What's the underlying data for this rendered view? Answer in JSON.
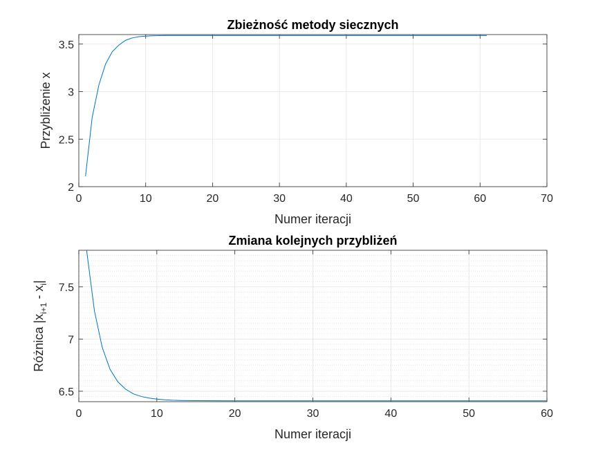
{
  "chart_data": [
    {
      "type": "line",
      "title": "Zbieżność metody siecznych",
      "xlabel": "Numer iteracji",
      "ylabel": "Przybliżenie x",
      "xlim": [
        0,
        70
      ],
      "ylim": [
        2,
        3.6
      ],
      "xticks": [
        0,
        10,
        20,
        30,
        40,
        50,
        60,
        70
      ],
      "yticks": [
        2,
        2.5,
        3,
        3.5
      ],
      "grid": "major",
      "color": "#0072BD",
      "x": [
        1,
        2,
        3,
        4,
        5,
        6,
        7,
        8,
        9,
        10,
        11,
        12,
        13,
        14,
        15,
        20,
        30,
        40,
        50,
        61
      ],
      "y": [
        2.11,
        2.73,
        3.07,
        3.29,
        3.42,
        3.49,
        3.54,
        3.565,
        3.578,
        3.584,
        3.587,
        3.589,
        3.59,
        3.59,
        3.59,
        3.59,
        3.59,
        3.59,
        3.59,
        3.59
      ]
    },
    {
      "type": "line",
      "title": "Zmiana kolejnych przybliżeń",
      "xlabel": "Numer iteracji",
      "ylabel_prefix": "Różnica |x",
      "ylabel_sub1": "i+1",
      "ylabel_mid": " - x",
      "ylabel_sub2": "i",
      "ylabel_suffix": "|",
      "xlim": [
        0,
        60
      ],
      "ylim": [
        6.4,
        7.85
      ],
      "xticks": [
        0,
        10,
        20,
        30,
        40,
        50,
        60
      ],
      "yticks": [
        6.5,
        7,
        7.5
      ],
      "grid": "major+minor",
      "color": "#0072BD",
      "x": [
        1,
        2,
        3,
        4,
        5,
        6,
        7,
        8,
        9,
        10,
        11,
        12,
        13,
        14,
        15,
        20,
        30,
        40,
        50,
        60
      ],
      "y": [
        7.85,
        7.27,
        6.92,
        6.71,
        6.59,
        6.52,
        6.475,
        6.45,
        6.435,
        6.425,
        6.418,
        6.414,
        6.412,
        6.411,
        6.41,
        6.408,
        6.408,
        6.408,
        6.408,
        6.408
      ]
    }
  ]
}
